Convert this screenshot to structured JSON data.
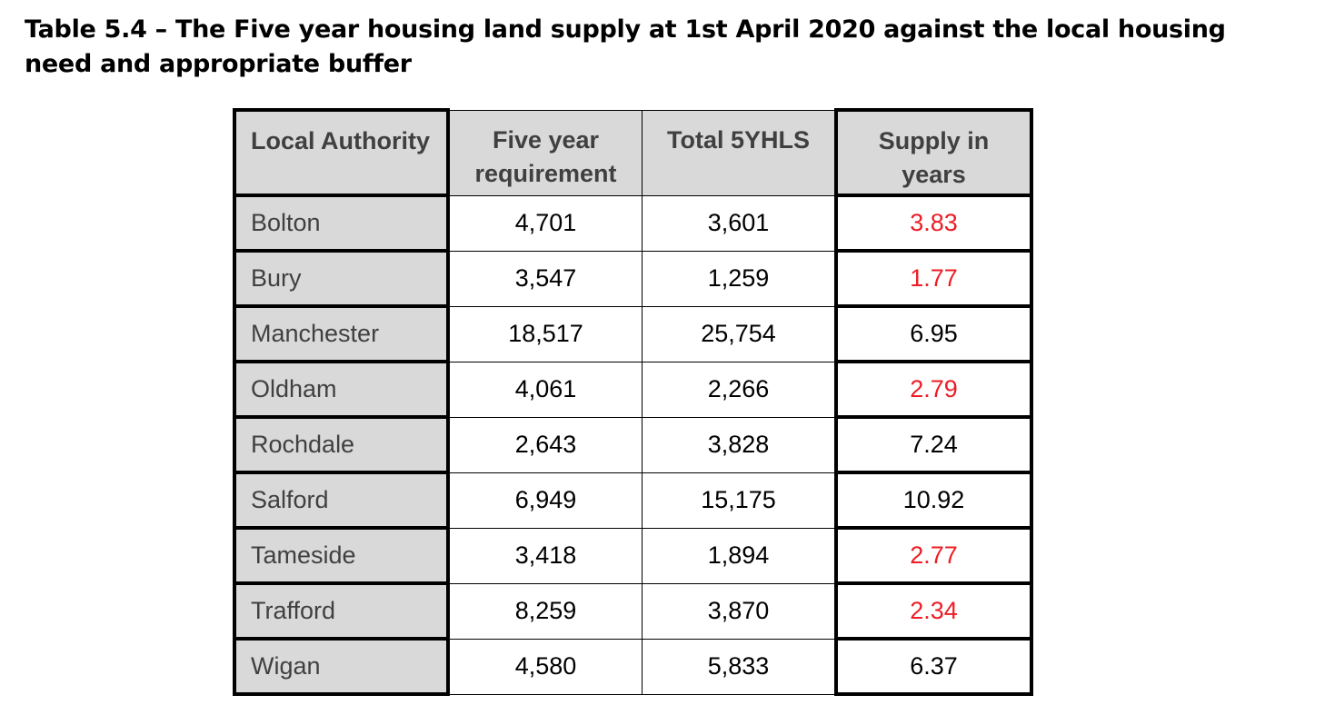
{
  "title": "Table 5.4 – The Five year housing land supply at 1st April 2020 against the local housing need and appropriate buffer",
  "colors": {
    "below_five_years": "#ee1c25",
    "header_bg": "#d9d9d9"
  },
  "table": {
    "headers": [
      "Local Authority",
      "Five year requirement",
      "Total 5YHLS",
      "Supply in years"
    ],
    "rows": [
      {
        "authority": "Bolton",
        "requirement": "4,701",
        "total": "3,601",
        "years": "3.83",
        "below_target": true
      },
      {
        "authority": "Bury",
        "requirement": "3,547",
        "total": "1,259",
        "years": "1.77",
        "below_target": true
      },
      {
        "authority": "Manchester",
        "requirement": "18,517",
        "total": "25,754",
        "years": "6.95",
        "below_target": false
      },
      {
        "authority": "Oldham",
        "requirement": "4,061",
        "total": "2,266",
        "years": "2.79",
        "below_target": true
      },
      {
        "authority": "Rochdale",
        "requirement": "2,643",
        "total": "3,828",
        "years": "7.24",
        "below_target": false
      },
      {
        "authority": "Salford",
        "requirement": "6,949",
        "total": "15,175",
        "years": "10.92",
        "below_target": false
      },
      {
        "authority": "Tameside",
        "requirement": "3,418",
        "total": "1,894",
        "years": "2.77",
        "below_target": true
      },
      {
        "authority": "Trafford",
        "requirement": "8,259",
        "total": "3,870",
        "years": "2.34",
        "below_target": true
      },
      {
        "authority": "Wigan",
        "requirement": "4,580",
        "total": "5,833",
        "years": "6.37",
        "below_target": false
      }
    ]
  }
}
